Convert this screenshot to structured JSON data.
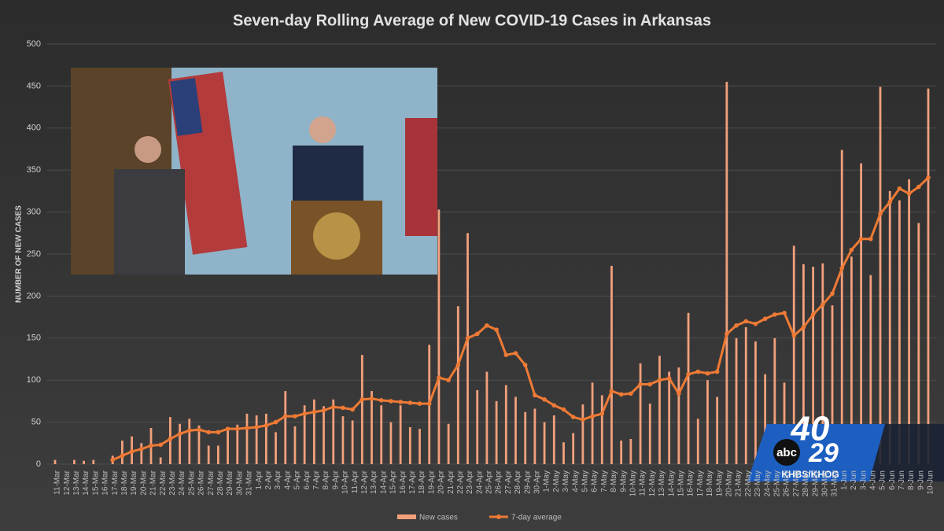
{
  "chart_data": {
    "type": "combo",
    "title": "Seven-day Rolling Average of New COVID-19 Cases in Arkansas",
    "y_label": "NUMBER OF NEW CASES",
    "categories": [
      "11-Mar",
      "12-Mar",
      "13-Mar",
      "14-Mar",
      "15-Mar",
      "16-Mar",
      "17-Mar",
      "18-Mar",
      "19-Mar",
      "20-Mar",
      "21-Mar",
      "22-Mar",
      "23-Mar",
      "24-Mar",
      "25-Mar",
      "26-Mar",
      "27-Mar",
      "28-Mar",
      "29-Mar",
      "30-Mar",
      "31-Mar",
      "1-Apr",
      "2-Apr",
      "3-Apr",
      "4-Apr",
      "5-Apr",
      "6-Apr",
      "7-Apr",
      "8-Apr",
      "9-Apr",
      "10-Apr",
      "11-Apr",
      "12-Apr",
      "13-Apr",
      "14-Apr",
      "15-Apr",
      "16-Apr",
      "17-Apr",
      "18-Apr",
      "19-Apr",
      "20-Apr",
      "21-Apr",
      "22-Apr",
      "23-Apr",
      "24-Apr",
      "25-Apr",
      "26-Apr",
      "27-Apr",
      "28-Apr",
      "29-Apr",
      "30-Apr",
      "1-May",
      "2-May",
      "3-May",
      "4-May",
      "5-May",
      "6-May",
      "7-May",
      "8-May",
      "9-May",
      "10-May",
      "11-May",
      "12-May",
      "13-May",
      "14-May",
      "15-May",
      "16-May",
      "17-May",
      "18-May",
      "19-May",
      "20-May",
      "21-May",
      "22-May",
      "23-May",
      "24-May",
      "25-May",
      "26-May",
      "27-May",
      "28-May",
      "29-May",
      "30-May",
      "31-May",
      "1-Jun",
      "2-Jun",
      "3-Jun",
      "4-Jun",
      "5-Jun",
      "6-Jun",
      "7-Jun",
      "8-Jun",
      "9-Jun",
      "10-Jun"
    ],
    "series": [
      {
        "name": "New cases",
        "type": "bar",
        "color": "#f2a07c",
        "values": [
          5,
          0,
          5,
          4,
          5,
          0,
          10,
          28,
          33,
          25,
          43,
          8,
          56,
          48,
          54,
          46,
          22,
          22,
          42,
          47,
          60,
          58,
          60,
          38,
          87,
          45,
          70,
          77,
          69,
          77,
          57,
          52,
          130,
          87,
          70,
          50,
          70,
          44,
          42,
          142,
          303,
          48,
          188,
          275,
          88,
          110,
          75,
          94,
          80,
          62,
          66,
          50,
          58,
          26,
          37,
          71,
          97,
          82,
          236,
          28,
          30,
          120,
          72,
          129,
          110,
          115,
          180,
          54,
          100,
          80,
          455,
          150,
          163,
          146,
          107,
          150,
          97,
          260,
          238,
          235,
          239,
          189,
          374,
          247,
          358,
          225,
          449,
          325,
          314,
          339,
          287,
          447
        ]
      },
      {
        "name": "7-day average",
        "type": "line",
        "color": "#ee7a35",
        "values": [
          null,
          null,
          null,
          null,
          null,
          null,
          5,
          10,
          15,
          18,
          22,
          23,
          30,
          36,
          40,
          41,
          38,
          38,
          42,
          42,
          43,
          44,
          46,
          50,
          57,
          57,
          60,
          62,
          64,
          68,
          67,
          65,
          77,
          78,
          76,
          75,
          74,
          73,
          72,
          72,
          103,
          100,
          118,
          150,
          155,
          165,
          160,
          130,
          132,
          118,
          82,
          77,
          70,
          65,
          56,
          53,
          57,
          60,
          87,
          83,
          84,
          95,
          95,
          100,
          102,
          84,
          107,
          110,
          108,
          110,
          155,
          165,
          170,
          167,
          173,
          178,
          180,
          153,
          163,
          178,
          190,
          203,
          233,
          255,
          268,
          268,
          298,
          312,
          328,
          322,
          330,
          341
        ]
      }
    ],
    "ylim": [
      0,
      500
    ],
    "yticks": [
      0,
      50,
      100,
      150,
      200,
      250,
      300,
      350,
      400,
      450,
      500
    ],
    "grid": true,
    "legend": "bottom"
  },
  "overlay_logo": {
    "channel": "40",
    "network": "abc",
    "number": "29",
    "callsign": "KHBS/KHOG"
  }
}
